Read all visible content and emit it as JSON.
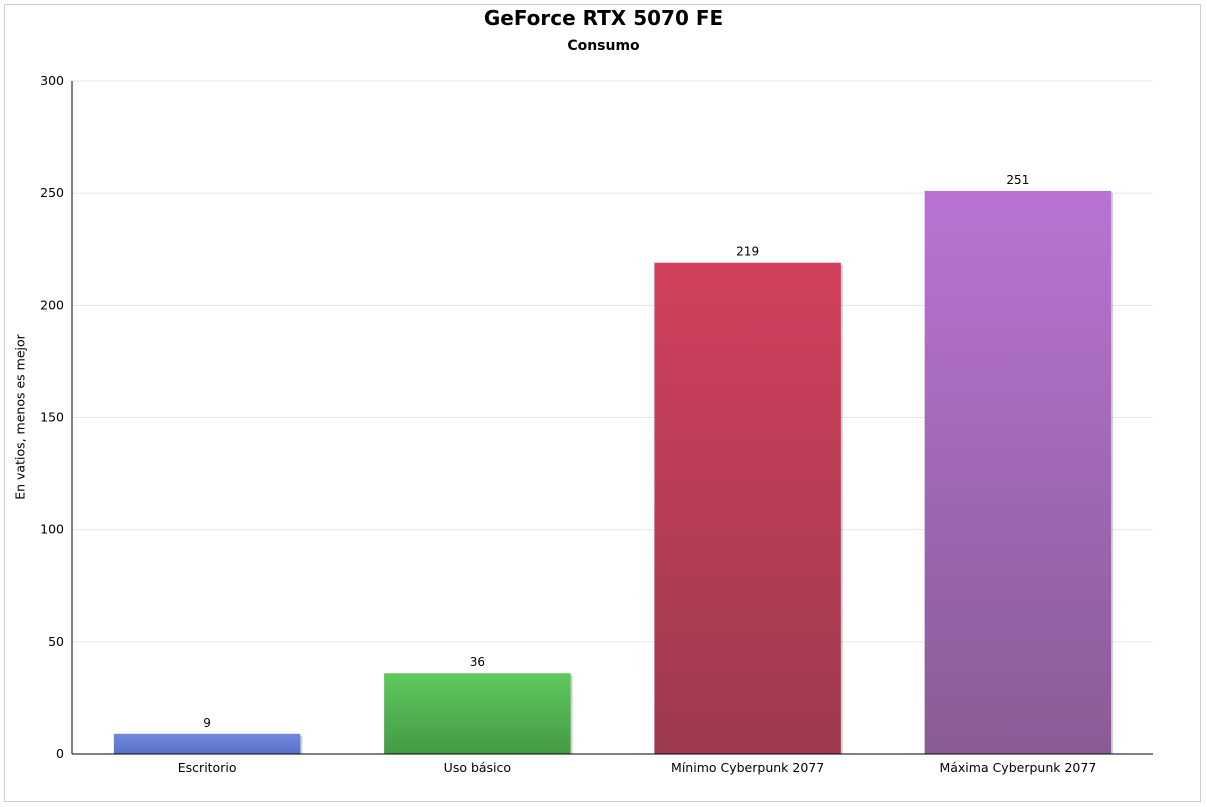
{
  "chart_data": {
    "type": "bar",
    "title": "GeForce RTX 5070 FE",
    "subtitle": "Consumo",
    "xlabel": "",
    "ylabel": "En vatios, menos es mejor",
    "ylim": [
      0,
      300
    ],
    "yticks": [
      0,
      50,
      100,
      150,
      200,
      250,
      300
    ],
    "grid": true,
    "categories": [
      "Escritorio",
      "Uso básico",
      "Mínimo Cyberpunk 2077",
      "Máxima Cyberpunk 2077"
    ],
    "values": [
      9,
      36,
      219,
      251
    ],
    "data_labels": [
      "9",
      "36",
      "219",
      "251"
    ],
    "colors": [
      [
        "#7189e0",
        "#5672c6"
      ],
      [
        "#5fc95f",
        "#449a44"
      ],
      [
        "#d2405d",
        "#9d3a4e"
      ],
      [
        "#b873d3",
        "#8a5c96"
      ]
    ]
  }
}
